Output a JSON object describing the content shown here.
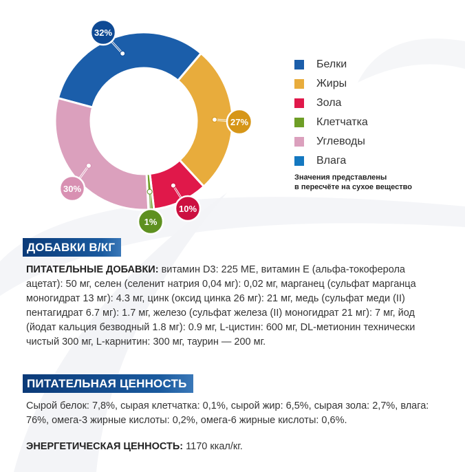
{
  "chart_data": {
    "type": "pie",
    "donut": true,
    "categories": [
      "Белки",
      "Жиры",
      "Зола",
      "Клетчатка",
      "Углеводы",
      "Влага"
    ],
    "values": [
      32,
      27,
      10,
      1,
      30,
      0
    ],
    "data_labels": [
      "32%",
      "27%",
      "10%",
      "1%",
      "30%",
      ""
    ],
    "colors": [
      "#1b5eaa",
      "#e8ac3c",
      "#e0184a",
      "#6e9e26",
      "#dba0bd",
      "#1478c0"
    ],
    "label_colors": [
      "#0f4a94",
      "#d69618",
      "#cc1040",
      "#5e9020",
      "#d890b2",
      ""
    ],
    "legend_position": "right"
  },
  "legend": {
    "items": [
      "Белки",
      "Жиры",
      "Зола",
      "Клетчатка",
      "Углеводы",
      "Влага"
    ],
    "note_line1": "Значения представлены",
    "note_line2": "в пересчёте на сухое вещество"
  },
  "additives": {
    "header": "ДОБАВКИ В/КГ",
    "label": "ПИТАТЕЛЬНЫЕ ДОБАВКИ:",
    "text": " витамин D3: 225 МЕ, витамин Е (альфа-токоферола ацетат): 50 мг, селен (селенит натрия 0,04 мг): 0,02 мг, марганец (сульфат мар­ганца моногидрат 13 мг): 4.3 мг, цинк (оксид цинка 26 мг): 21 мг, медь (суль­фат меди (II) пентагидрат 6.7 мг): 1.7 мг, железо (сульфат железа (II) моноги­драт 21 мг): 7 мг, йод (йодат кальция безводный 1.8 мг): 0.9 мг, L-цистин: 600 мг, DL-метионин технически чистый 300 мг, L-карнитин: 300 мг, таурин — 200 мг."
  },
  "nutrition": {
    "header": "ПИТАТЕЛЬНАЯ ЦЕННОСТЬ",
    "text": "Сырой белок: 7,8%, сырая клетчатка: 0,1%, сырой жир: 6,5%, сырая зола: 2,7%, влага: 76%, омега-3 жирные кислоты: 0,2%, омега-6 жирные кислоты: 0,6%.",
    "energy_label": "ЭНЕРГЕТИЧЕСКАЯ ЦЕННОСТЬ:",
    "energy_value": " 1170 ккал/кг."
  }
}
